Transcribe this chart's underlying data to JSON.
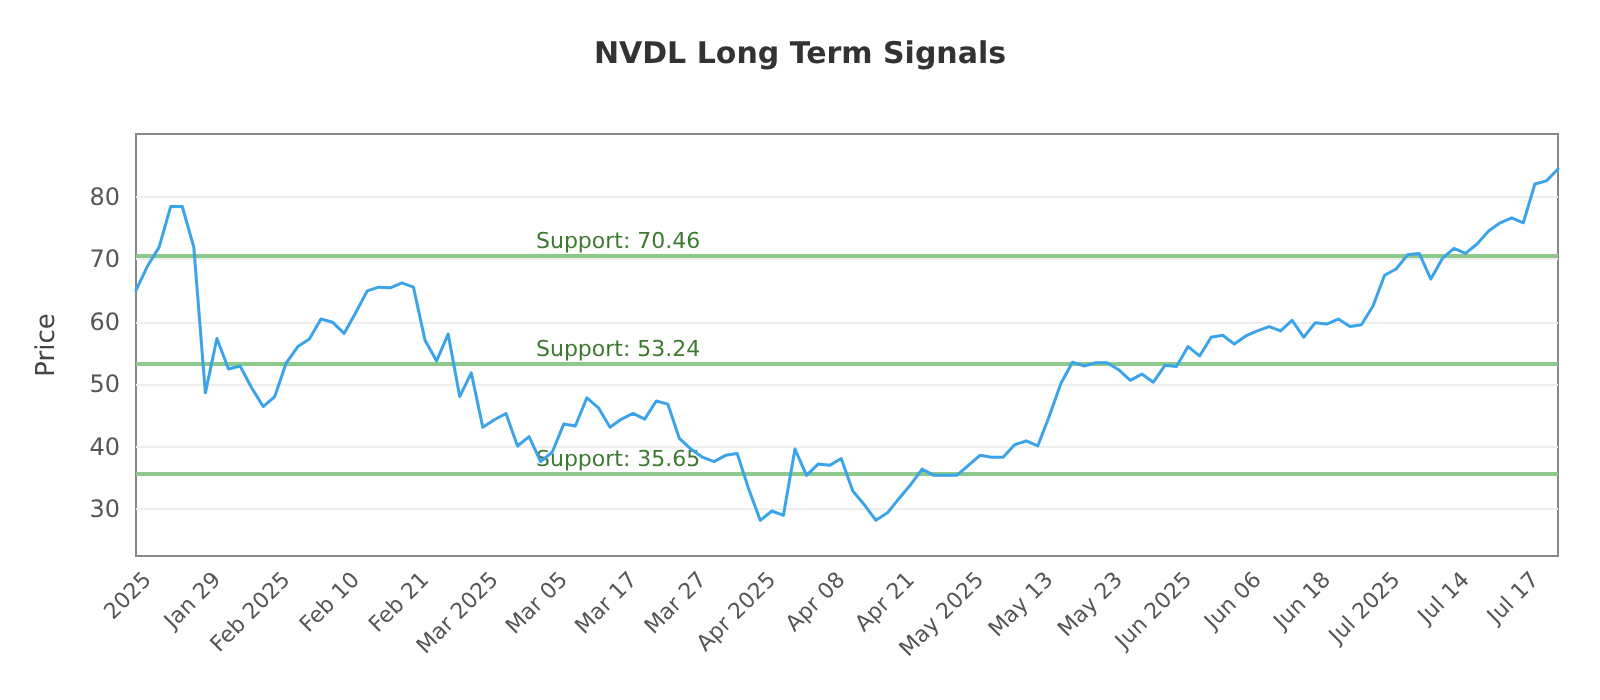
{
  "chart_data": {
    "type": "line",
    "title": "NVDL Long Term Signals",
    "ylabel": "Price",
    "categories": [
      null,
      "2025",
      null,
      null,
      null,
      null,
      null,
      "Jan 29",
      null,
      null,
      null,
      null,
      null,
      "Feb 2025",
      null,
      null,
      null,
      null,
      null,
      "Feb 10",
      null,
      null,
      null,
      null,
      null,
      "Feb 21",
      null,
      null,
      null,
      null,
      null,
      "Mar 2025",
      null,
      null,
      null,
      null,
      null,
      "Mar 05",
      null,
      null,
      null,
      null,
      null,
      "Mar 17",
      null,
      null,
      null,
      null,
      null,
      "Mar 27",
      null,
      null,
      null,
      null,
      null,
      "Apr 2025",
      null,
      null,
      null,
      null,
      null,
      "Apr 08",
      null,
      null,
      null,
      null,
      null,
      "Apr 21",
      null,
      null,
      null,
      null,
      null,
      "May 2025",
      null,
      null,
      null,
      null,
      null,
      "May 13",
      null,
      null,
      null,
      null,
      null,
      "May 23",
      null,
      null,
      null,
      null,
      null,
      "Jun 2025",
      null,
      null,
      null,
      null,
      null,
      "Jun 06",
      null,
      null,
      null,
      null,
      null,
      "Jun 18",
      null,
      null,
      null,
      null,
      null,
      "Jul 2025",
      null,
      null,
      null,
      null,
      null,
      "Jul 14",
      null,
      null,
      null,
      null,
      null,
      "Jul 17",
      null,
      null
    ],
    "series": [
      {
        "color": "#3ba3e8",
        "values": [
          65.0,
          68.9,
          71.9,
          78.4,
          78.4,
          71.9,
          48.6,
          57.3,
          52.4,
          52.9,
          49.4,
          46.4,
          48.0,
          53.4,
          56.0,
          57.2,
          60.4,
          59.9,
          58.1,
          61.4,
          64.9,
          65.5,
          65.4,
          66.2,
          65.5,
          57.0,
          53.7,
          58.0,
          48.0,
          51.8,
          43.1,
          44.3,
          45.3,
          40.1,
          41.6,
          37.6,
          39.1,
          43.6,
          43.3,
          47.8,
          46.2,
          43.1,
          44.4,
          45.3,
          44.4,
          47.3,
          46.8,
          41.3,
          39.6,
          38.3,
          37.6,
          38.6,
          38.9,
          33.2,
          28.2,
          29.7,
          29.0,
          39.6,
          35.4,
          37.2,
          37.0,
          38.1,
          32.9,
          30.7,
          28.2,
          29.4,
          31.7,
          33.9,
          36.4,
          35.4,
          35.4,
          35.4,
          37.0,
          38.6,
          38.3,
          38.3,
          40.3,
          40.9,
          40.1,
          44.9,
          50.1,
          53.5,
          52.9,
          53.4,
          53.4,
          52.3,
          50.6,
          51.6,
          50.3,
          53.0,
          52.8,
          56.0,
          54.5,
          57.5,
          57.8,
          56.4,
          57.7,
          58.5,
          59.2,
          58.5,
          60.2,
          57.5,
          59.8,
          59.6,
          60.4,
          59.2,
          59.5,
          62.5,
          67.4,
          68.4,
          70.7,
          70.9,
          66.8,
          70.1,
          71.7,
          70.9,
          72.4,
          74.5,
          75.8,
          76.6,
          75.8,
          82.0,
          82.5,
          84.4
        ]
      }
    ],
    "ylim": [
      22.5,
      90
    ],
    "yticks": [
      30,
      40,
      50,
      60,
      70,
      80
    ],
    "grid": "y",
    "marker": "none",
    "line_style": "solid",
    "ref_lines": [
      {
        "axis": "y",
        "value": 70.46,
        "label": "Support: 70.46",
        "color": "#8cc98a"
      },
      {
        "axis": "y",
        "value": 53.24,
        "label": "Support: 53.24",
        "color": "#8cc98a"
      },
      {
        "axis": "y",
        "value": 35.65,
        "label": "Support: 35.65",
        "color": "#8cc98a"
      }
    ]
  }
}
